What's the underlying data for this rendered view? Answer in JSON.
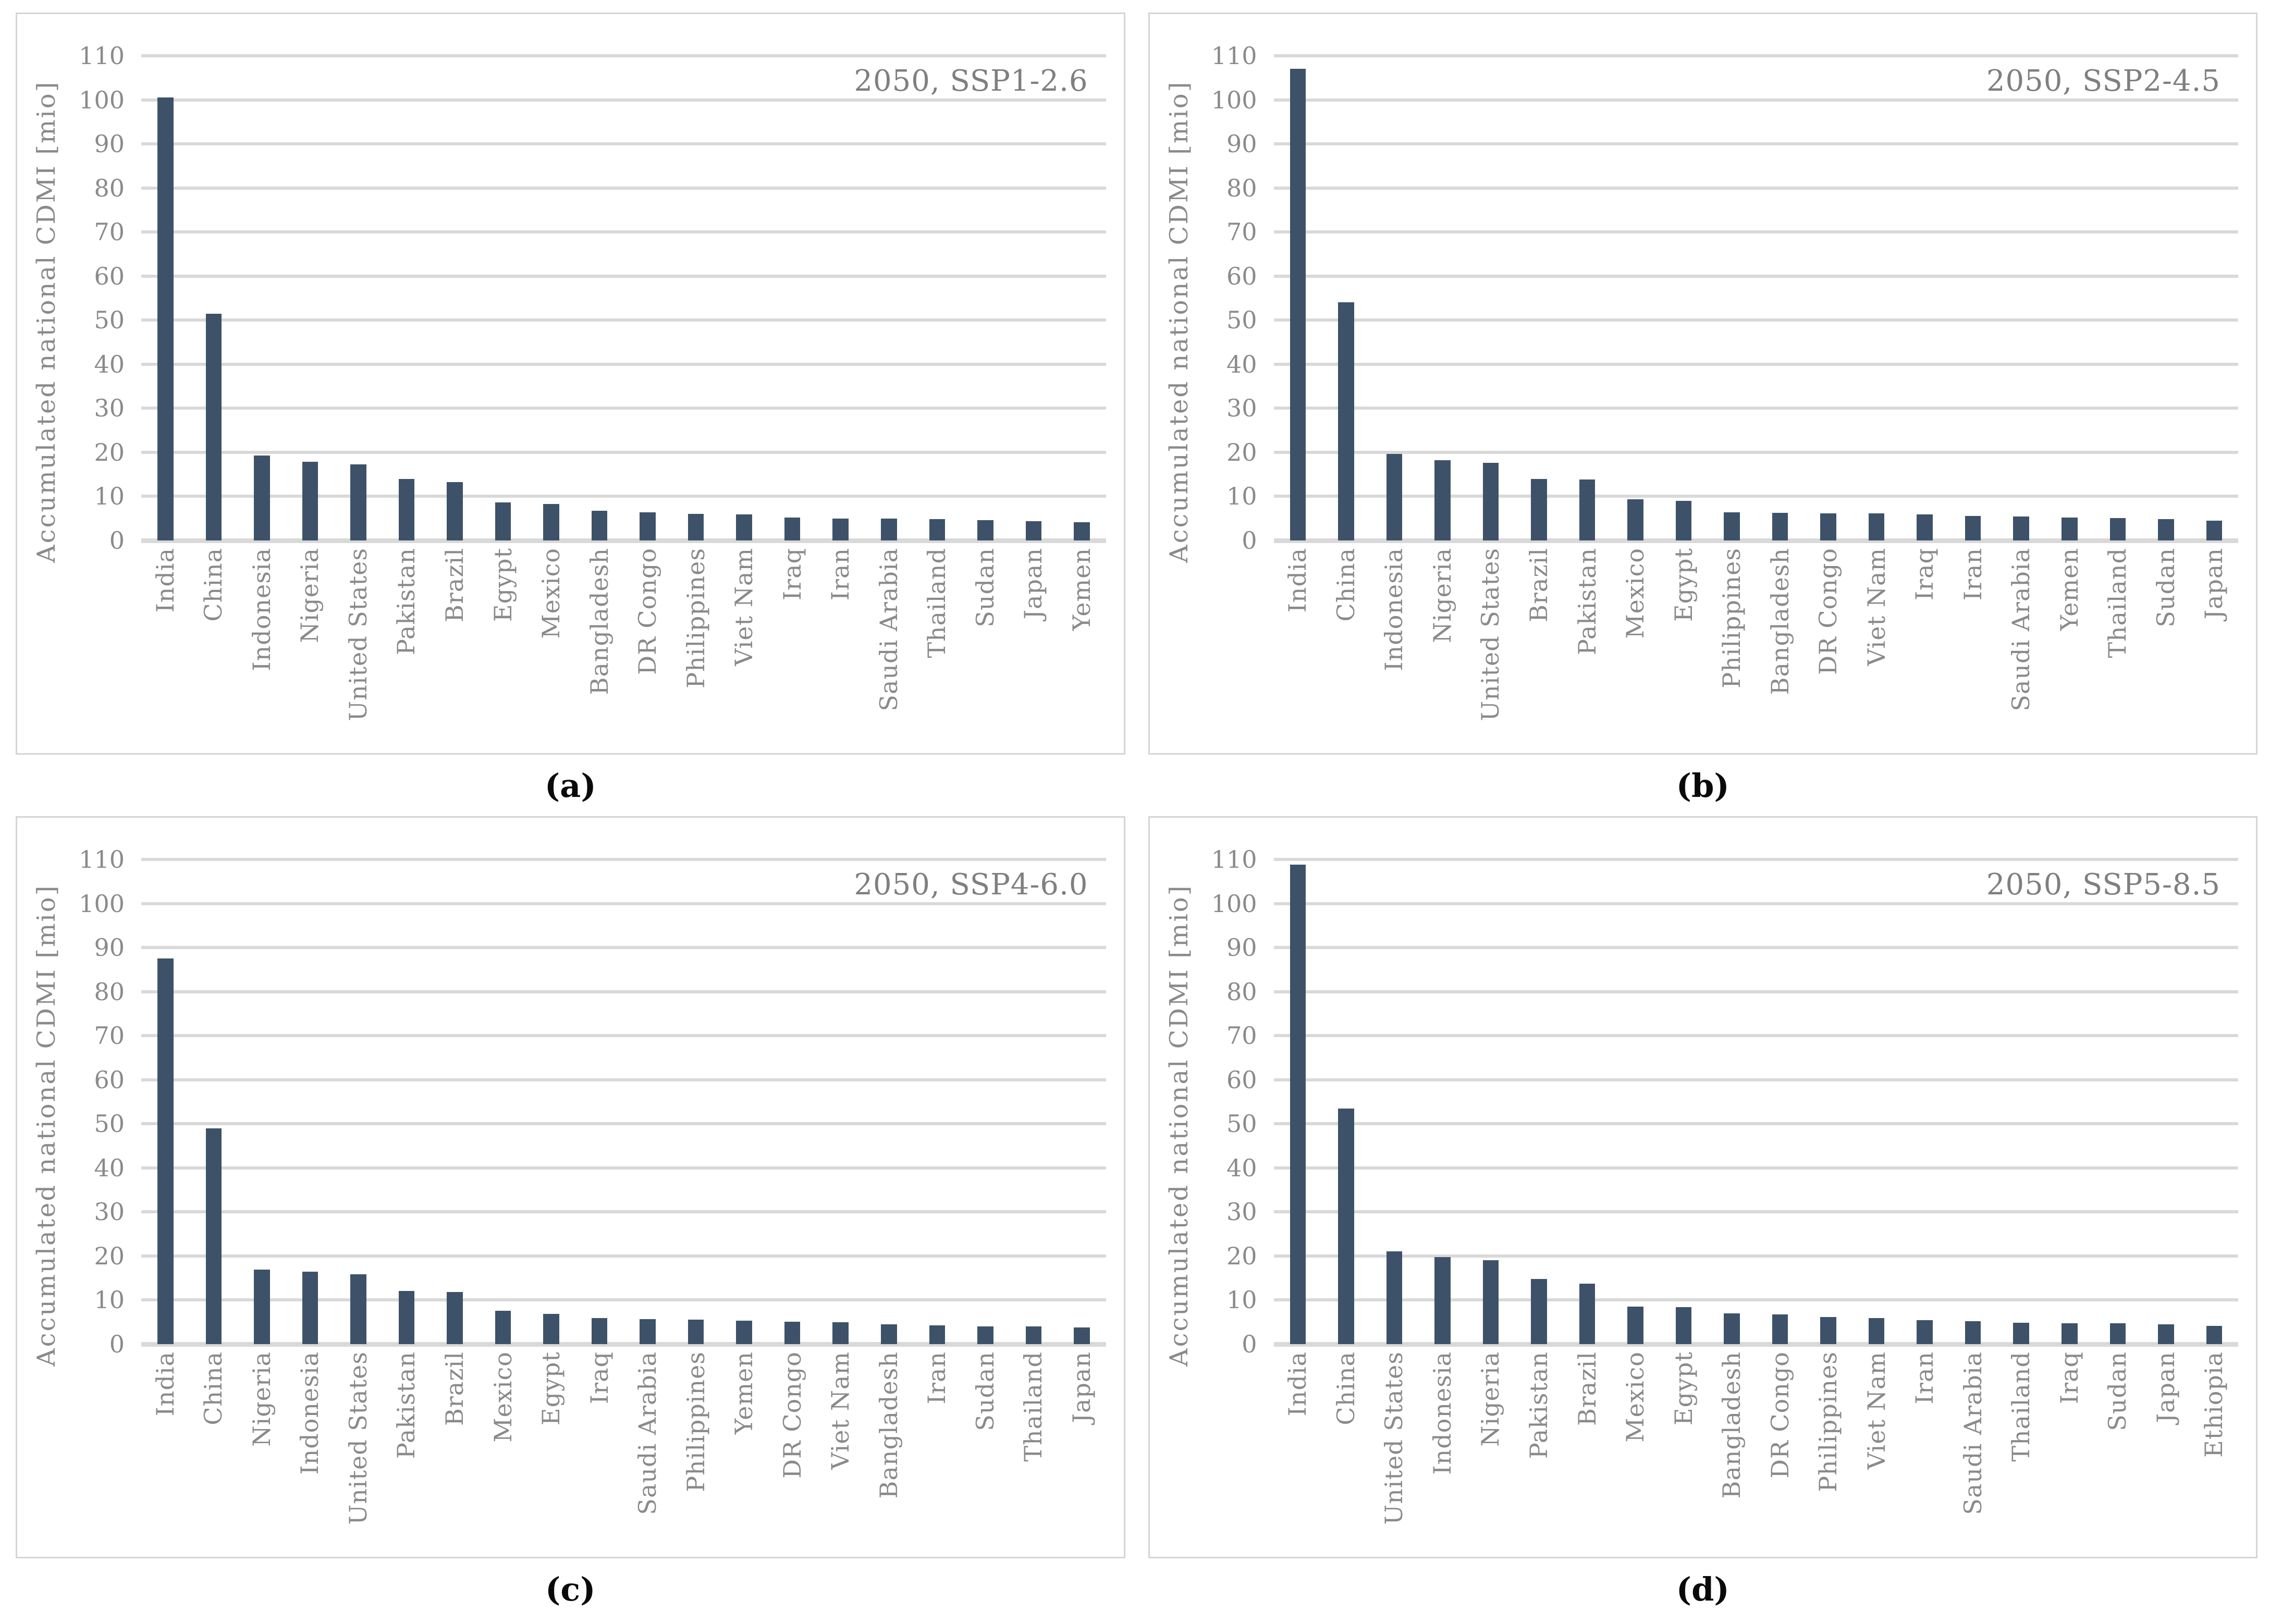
{
  "figure": {
    "y_axis_title": "Accumulated national CDMI [mio]",
    "y_ticks": [
      110,
      100,
      90,
      80,
      70,
      60,
      50,
      40,
      30,
      20,
      10,
      0
    ],
    "ymax": 110,
    "colors": {
      "bar": "#3d5268",
      "gridline": "#d9d9d9",
      "axis_text": "#8a8a8a",
      "panel_title_text": "#7f7f7f",
      "panel_border": "#d5d5d5",
      "caption_text": "#0a0a0a"
    }
  },
  "chart_data": [
    {
      "type": "bar",
      "panel_id": "a",
      "caption": "(a)",
      "title": "2050, SSP1-2.6",
      "ylabel": "Accumulated national CDMI [mio]",
      "ylim": [
        0,
        110
      ],
      "grid": true,
      "categories": [
        "India",
        "China",
        "Indonesia",
        "Nigeria",
        "United States",
        "Pakistan",
        "Brazil",
        "Egypt",
        "Mexico",
        "Bangladesh",
        "DR Congo",
        "Philippines",
        "Viet Nam",
        "Iraq",
        "Iran",
        "Saudi Arabia",
        "Thailand",
        "Sudan",
        "Japan",
        "Yemen"
      ],
      "values": [
        100.5,
        51.5,
        19.3,
        17.9,
        17.3,
        14.0,
        13.3,
        8.6,
        8.3,
        6.8,
        6.4,
        6.0,
        5.9,
        5.2,
        5.0,
        5.0,
        4.9,
        4.6,
        4.4,
        4.2
      ]
    },
    {
      "type": "bar",
      "panel_id": "b",
      "caption": "(b)",
      "title": "2050, SSP2-4.5",
      "ylabel": "Accumulated national CDMI [mio]",
      "ylim": [
        0,
        110
      ],
      "grid": true,
      "categories": [
        "India",
        "China",
        "Indonesia",
        "Nigeria",
        "United States",
        "Brazil",
        "Pakistan",
        "Mexico",
        "Egypt",
        "Philippines",
        "Bangladesh",
        "DR Congo",
        "Viet Nam",
        "Iraq",
        "Iran",
        "Saudi Arabia",
        "Yemen",
        "Thailand",
        "Sudan",
        "Japan"
      ],
      "values": [
        107.0,
        54.0,
        19.6,
        18.2,
        17.6,
        14.0,
        13.8,
        9.4,
        9.0,
        6.4,
        6.3,
        6.2,
        6.1,
        5.9,
        5.6,
        5.5,
        5.2,
        5.1,
        4.9,
        4.5
      ]
    },
    {
      "type": "bar",
      "panel_id": "c",
      "caption": "(c)",
      "title": "2050, SSP4-6.0",
      "ylabel": "Accumulated national CDMI [mio]",
      "ylim": [
        0,
        110
      ],
      "grid": true,
      "categories": [
        "India",
        "China",
        "Nigeria",
        "Indonesia",
        "United States",
        "Pakistan",
        "Brazil",
        "Mexico",
        "Egypt",
        "Iraq",
        "Saudi Arabia",
        "Philippines",
        "Yemen",
        "DR Congo",
        "Viet Nam",
        "Bangladesh",
        "Iran",
        "Sudan",
        "Thailand",
        "Japan"
      ],
      "values": [
        87.5,
        49.0,
        16.9,
        16.5,
        15.9,
        12.1,
        11.8,
        7.6,
        6.9,
        5.9,
        5.7,
        5.6,
        5.3,
        5.1,
        5.0,
        4.5,
        4.3,
        4.0,
        4.0,
        3.8
      ]
    },
    {
      "type": "bar",
      "panel_id": "d",
      "caption": "(d)",
      "title": "2050, SSP5-8.5",
      "ylabel": "Accumulated national CDMI [mio]",
      "ylim": [
        0,
        110
      ],
      "grid": true,
      "categories": [
        "India",
        "China",
        "United States",
        "Indonesia",
        "Nigeria",
        "Pakistan",
        "Brazil",
        "Mexico",
        "Egypt",
        "Bangladesh",
        "DR Congo",
        "Philippines",
        "Viet Nam",
        "Iran",
        "Saudi Arabia",
        "Thailand",
        "Iraq",
        "Sudan",
        "Japan",
        "Ethiopia"
      ],
      "values": [
        108.8,
        53.5,
        21.0,
        19.8,
        19.0,
        14.8,
        13.7,
        8.5,
        8.4,
        7.0,
        6.7,
        6.1,
        5.9,
        5.5,
        5.2,
        4.9,
        4.7,
        4.7,
        4.5,
        4.1
      ]
    }
  ]
}
